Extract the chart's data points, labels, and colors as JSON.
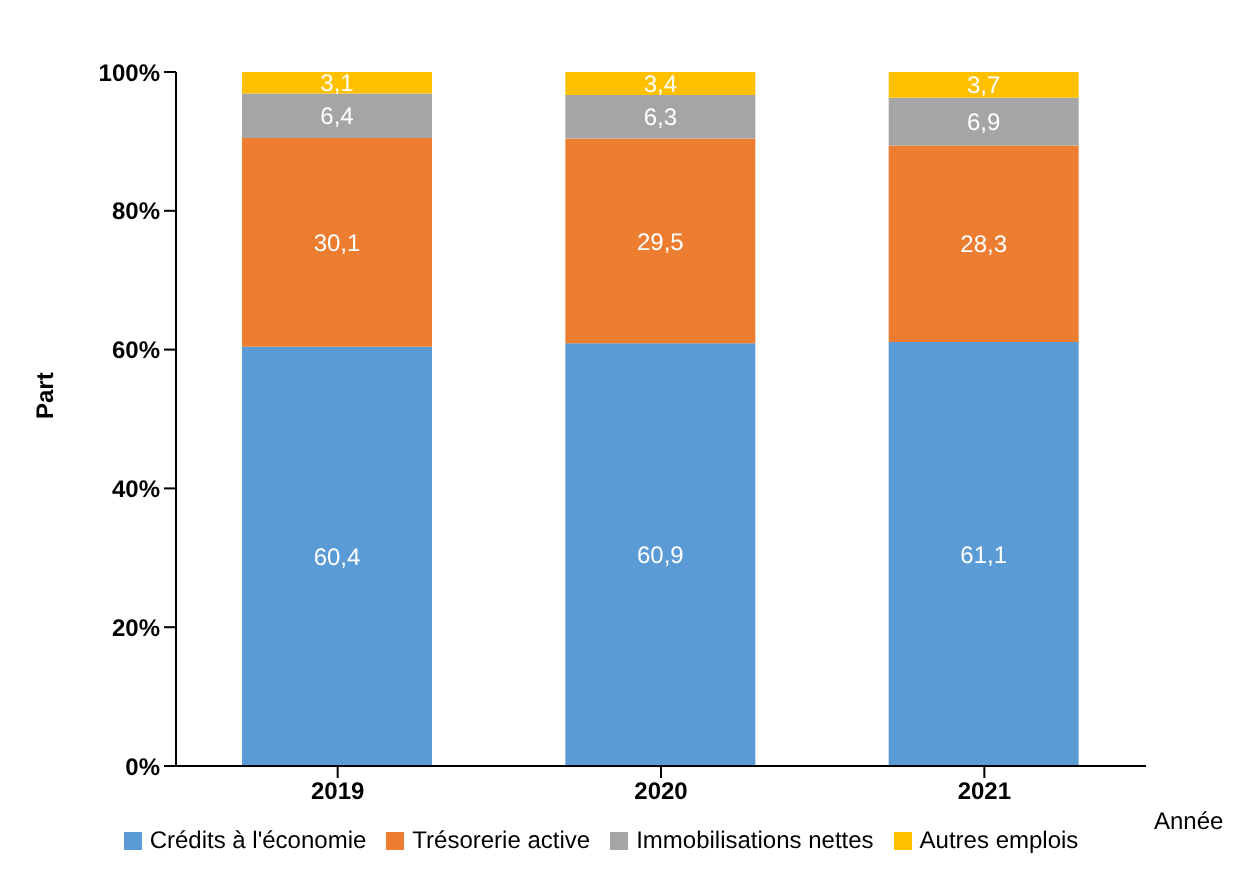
{
  "chart_data": {
    "type": "bar",
    "stacked": true,
    "xlabel": "Année",
    "ylabel": "Part",
    "categories": [
      "2019",
      "2020",
      "2021"
    ],
    "series": [
      {
        "name": "Crédits à l'économie",
        "color": "#5b9bd5",
        "values": [
          60.4,
          60.9,
          61.1
        ],
        "value_labels": [
          "60,4",
          "60,9",
          "61,1"
        ]
      },
      {
        "name": "Trésorerie active",
        "color": "#ed7d31",
        "values": [
          30.1,
          29.5,
          28.3
        ],
        "value_labels": [
          "30,1",
          "29,5",
          "28,3"
        ]
      },
      {
        "name": "Immobilisations nettes",
        "color": "#a5a5a5",
        "values": [
          6.4,
          6.3,
          6.9
        ],
        "value_labels": [
          "6,4",
          "6,3",
          "6,9"
        ]
      },
      {
        "name": "Autres emplois",
        "color": "#ffc000",
        "values": [
          3.1,
          3.4,
          3.7
        ],
        "value_labels": [
          "3,1",
          "3,4",
          "3,7"
        ]
      }
    ],
    "ylim": [
      0,
      100
    ],
    "yticks": [
      {
        "value": 0,
        "label": "0%"
      },
      {
        "value": 20,
        "label": "20%"
      },
      {
        "value": 40,
        "label": "40%"
      },
      {
        "value": 60,
        "label": "60%"
      },
      {
        "value": 80,
        "label": "80%"
      },
      {
        "value": 100,
        "label": "100%"
      }
    ],
    "grid": false,
    "legend": "bottom"
  }
}
